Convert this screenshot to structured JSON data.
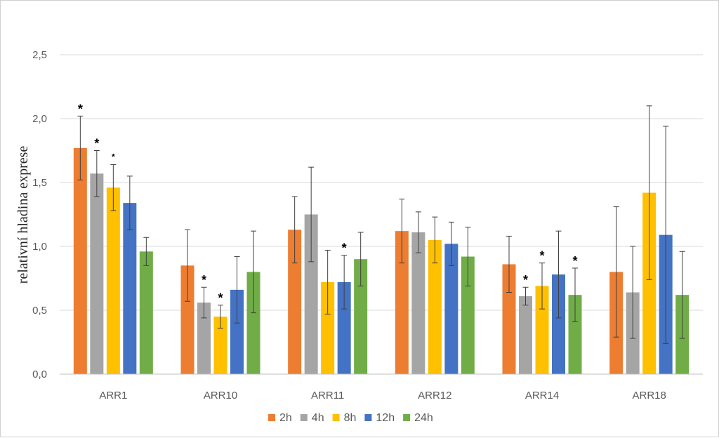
{
  "chart_data": {
    "type": "bar",
    "title": "",
    "xlabel": "",
    "ylabel": "relativní hladina exprese",
    "ylim": [
      0,
      2.5
    ],
    "yticks": [
      "0,0",
      "0,5",
      "1,0",
      "1,5",
      "2,0",
      "2,5"
    ],
    "ytick_values": [
      0,
      0.5,
      1.0,
      1.5,
      2.0,
      2.5
    ],
    "grid": true,
    "legend_position": "bottom",
    "categories": [
      "ARR1",
      "ARR10",
      "ARR11",
      "ARR12",
      "ARR14",
      "ARR18"
    ],
    "series": [
      {
        "name": "2h",
        "color": "#ED7D31",
        "values": [
          1.77,
          0.85,
          1.13,
          1.12,
          0.86,
          0.8
        ],
        "errors": [
          0.25,
          0.28,
          0.26,
          0.25,
          0.22,
          0.51
        ],
        "significance": [
          "*",
          "",
          "",
          "",
          "",
          ""
        ]
      },
      {
        "name": "4h",
        "color": "#A5A5A5",
        "values": [
          1.57,
          0.56,
          1.25,
          1.11,
          0.61,
          0.64
        ],
        "errors": [
          0.18,
          0.12,
          0.37,
          0.16,
          0.07,
          0.36
        ],
        "significance": [
          "*",
          "*",
          "",
          "",
          "*",
          ""
        ]
      },
      {
        "name": "8h",
        "color": "#FFC000",
        "values": [
          1.46,
          0.45,
          0.72,
          1.05,
          0.69,
          1.42
        ],
        "errors": [
          0.18,
          0.09,
          0.25,
          0.18,
          0.18,
          0.68
        ],
        "significance": [
          "*",
          "*",
          "",
          "",
          "*",
          ""
        ]
      },
      {
        "name": "12h",
        "color": "#4472C4",
        "values": [
          1.34,
          0.66,
          0.72,
          1.02,
          0.78,
          1.09
        ],
        "errors": [
          0.21,
          0.26,
          0.21,
          0.17,
          0.34,
          0.85
        ],
        "significance": [
          "",
          "",
          "*",
          "",
          "",
          ""
        ]
      },
      {
        "name": "24h",
        "color": "#70AD47",
        "values": [
          0.96,
          0.8,
          0.9,
          0.92,
          0.62,
          0.62
        ],
        "errors": [
          0.11,
          0.32,
          0.21,
          0.23,
          0.21,
          0.34
        ],
        "significance": [
          "",
          "",
          "",
          "",
          "*",
          ""
        ]
      }
    ]
  }
}
